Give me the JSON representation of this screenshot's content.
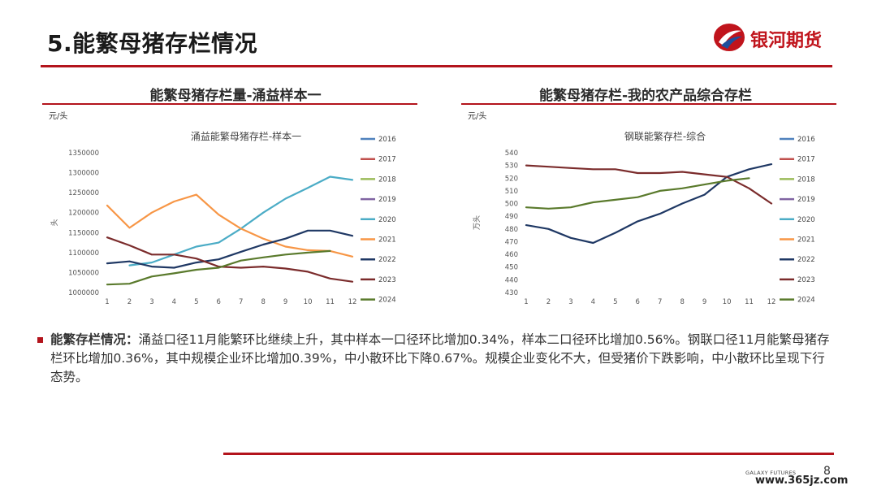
{
  "header": {
    "title": "5.能繁母猪存栏情况",
    "logo_text": "银河期货"
  },
  "colors": {
    "accent": "#b3141c",
    "logo_blue": "#1f4e9c"
  },
  "legend_years": [
    "2016",
    "2017",
    "2018",
    "2019",
    "2020",
    "2021",
    "2022",
    "2023",
    "2024"
  ],
  "series_colors": {
    "2016": "#4f81bd",
    "2017": "#c0504d",
    "2018": "#9bbb59",
    "2019": "#8064a2",
    "2020": "#4bacc6",
    "2021": "#f79646",
    "2022": "#1f3864",
    "2023": "#7b2c2c",
    "2024": "#5a7a2c"
  },
  "chart_data": [
    {
      "type": "line",
      "panel_title": "能繁母猪存栏量-涌益样本一",
      "unit": "元/头",
      "title": "涌益能繁母猪存栏-样本一",
      "ylabel": "头",
      "x": [
        1,
        2,
        3,
        4,
        5,
        6,
        7,
        8,
        9,
        10,
        11,
        12
      ],
      "ylim": [
        1000000,
        1350000
      ],
      "yticks": [
        "1000000",
        "1050000",
        "1100000",
        "1150000",
        "1200000",
        "1250000",
        "1300000",
        "1350000"
      ],
      "series": [
        {
          "name": "2020",
          "values": [
            null,
            1068000,
            1075000,
            1095000,
            1115000,
            1125000,
            1160000,
            1200000,
            1235000,
            1262000,
            1290000,
            1282000
          ]
        },
        {
          "name": "2021",
          "values": [
            1218000,
            1162000,
            1200000,
            1228000,
            1245000,
            1195000,
            1160000,
            1135000,
            1115000,
            1106000,
            1104000,
            1090000
          ]
        },
        {
          "name": "2022",
          "values": [
            1073000,
            1078000,
            1065000,
            1062000,
            1075000,
            1083000,
            1102000,
            1120000,
            1135000,
            1155000,
            1155000,
            1142000
          ]
        },
        {
          "name": "2023",
          "values": [
            1138000,
            1118000,
            1095000,
            1095000,
            1085000,
            1065000,
            1062000,
            1065000,
            1060000,
            1052000,
            1035000,
            1027000
          ]
        },
        {
          "name": "2024",
          "values": [
            1020000,
            1022000,
            1040000,
            1048000,
            1057000,
            1062000,
            1080000,
            1088000,
            1095000,
            1100000,
            1104000,
            null
          ]
        }
      ]
    },
    {
      "type": "line",
      "panel_title": "能繁母猪存栏-我的农产品综合存栏",
      "unit": "元/头",
      "title": "钢联能繁存栏-综合",
      "ylabel": "万头",
      "x": [
        1,
        2,
        3,
        4,
        5,
        6,
        7,
        8,
        9,
        10,
        11,
        12
      ],
      "ylim": [
        430,
        540
      ],
      "yticks": [
        "430",
        "440",
        "450",
        "460",
        "470",
        "480",
        "490",
        "500",
        "510",
        "520",
        "530",
        "540"
      ],
      "series": [
        {
          "name": "2022",
          "values": [
            483,
            480,
            473,
            469,
            477,
            486,
            492,
            500,
            507,
            521,
            527,
            531
          ]
        },
        {
          "name": "2023",
          "values": [
            530,
            529,
            528,
            527,
            527,
            524,
            524,
            525,
            523,
            521,
            512,
            500
          ]
        },
        {
          "name": "2024",
          "values": [
            497,
            496,
            497,
            501,
            503,
            505,
            510,
            512,
            515,
            518,
            520,
            null
          ]
        }
      ]
    }
  ],
  "commentary": {
    "lead": "能繁存栏情况：",
    "body": "涌益口径11月能繁环比继续上升，其中样本一口径环比增加0.34%，样本二口径环比增加0.56%。钢联口径11月能繁母猪存栏环比增加0.36%，其中规模企业环比增加0.39%，中小散环比下降0.67%。规模企业变化不大，但受猪价下跌影响，中小散环比呈现下行态势。"
  },
  "footer": {
    "brand": "GALAXY FUTURES",
    "page_number": "8",
    "watermark": "www.365jz.com"
  }
}
